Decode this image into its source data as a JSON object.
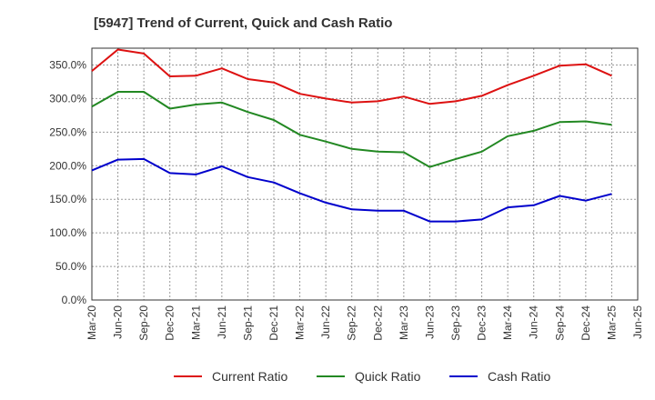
{
  "chart_data": {
    "type": "line",
    "title": "[5947]  Trend of Current, Quick and Cash Ratio",
    "xlabel": "",
    "ylabel": "",
    "ylim": [
      0,
      375
    ],
    "yticks": [
      0,
      50,
      100,
      150,
      200,
      250,
      300,
      350
    ],
    "ytick_labels": [
      "0.0%",
      "50.0%",
      "100.0%",
      "150.0%",
      "200.0%",
      "250.0%",
      "300.0%",
      "350.0%"
    ],
    "grid": true,
    "legend_position": "bottom",
    "categories": [
      "Mar-20",
      "Jun-20",
      "Sep-20",
      "Dec-20",
      "Mar-21",
      "Jun-21",
      "Sep-21",
      "Dec-21",
      "Mar-22",
      "Jun-22",
      "Sep-22",
      "Dec-22",
      "Mar-23",
      "Jun-23",
      "Sep-23",
      "Dec-23",
      "Mar-24",
      "Jun-24",
      "Sep-24",
      "Dec-24",
      "Mar-25",
      "Jun-25"
    ],
    "series": [
      {
        "name": "Current Ratio",
        "color": "#dd1111",
        "values": [
          341,
          373,
          367,
          333,
          334,
          345,
          329,
          324,
          307,
          300,
          294,
          296,
          303,
          292,
          296,
          304,
          320,
          334,
          349,
          351,
          334,
          null
        ]
      },
      {
        "name": "Quick Ratio",
        "color": "#228822",
        "values": [
          288,
          310,
          310,
          285,
          291,
          294,
          280,
          268,
          246,
          236,
          225,
          221,
          220,
          198,
          210,
          221,
          244,
          252,
          265,
          266,
          261,
          null
        ]
      },
      {
        "name": "Cash Ratio",
        "color": "#0000cc",
        "values": [
          193,
          209,
          210,
          189,
          187,
          199,
          183,
          175,
          159,
          145,
          135,
          133,
          133,
          117,
          117,
          120,
          138,
          141,
          155,
          148,
          158,
          null
        ]
      }
    ]
  }
}
